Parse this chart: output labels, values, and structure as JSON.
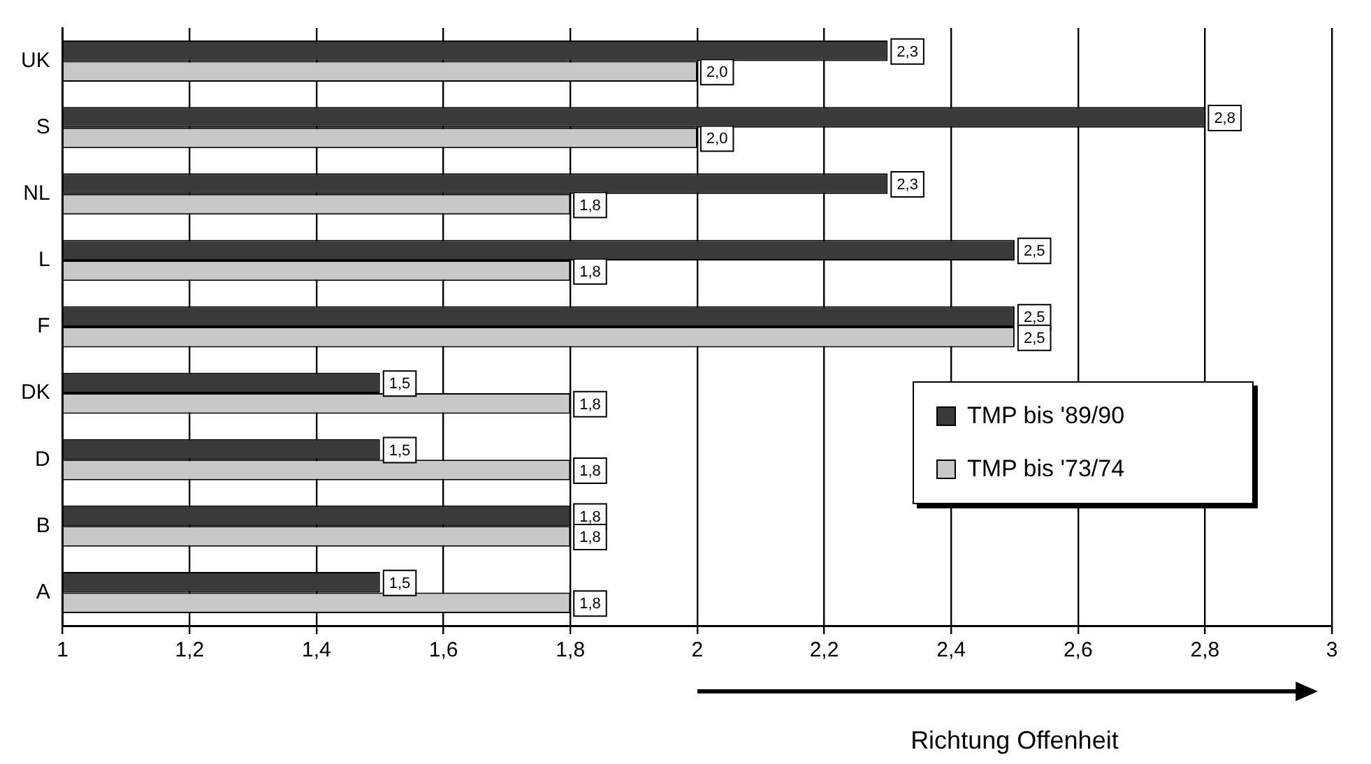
{
  "chart_data": {
    "type": "bar",
    "orientation": "horizontal",
    "xlabel": "Richtung Offenheit",
    "categories": [
      "UK",
      "S",
      "NL",
      "L",
      "F",
      "DK",
      "D",
      "B",
      "A"
    ],
    "series": [
      {
        "name": "TMP bis '89/90",
        "color": "#3a3a3a",
        "values": [
          2.3,
          2.8,
          2.3,
          2.5,
          2.5,
          1.5,
          1.5,
          1.8,
          1.5
        ],
        "value_labels": [
          "2,3",
          "2,8",
          "2,3",
          "2,5",
          "2,5",
          "1,5",
          "1,5",
          "1,8",
          "1,5"
        ]
      },
      {
        "name": "TMP bis '73/74",
        "color": "#c8c8c8",
        "values": [
          2.0,
          2.0,
          1.8,
          1.8,
          2.5,
          1.8,
          1.8,
          1.8,
          1.8
        ],
        "value_labels": [
          "2,0",
          "2,0",
          "1,8",
          "1,8",
          "2,5",
          "1,8",
          "1,8",
          "1,8",
          "1,8"
        ]
      }
    ],
    "xlim": [
      1,
      3
    ],
    "xticks": [
      1,
      {
        "value": 1.2,
        "label": "1,2"
      },
      {
        "value": 1.4,
        "label": "1,4"
      },
      {
        "value": 1.6,
        "label": "1,6"
      },
      {
        "value": 1.8,
        "label": "1,8"
      },
      2,
      {
        "value": 2.2,
        "label": "2,2"
      },
      {
        "value": 2.4,
        "label": "2,4"
      },
      {
        "value": 2.6,
        "label": "2,6"
      },
      {
        "value": 2.8,
        "label": "2,8"
      },
      3
    ],
    "grid": "x",
    "legend": "bottom right"
  }
}
